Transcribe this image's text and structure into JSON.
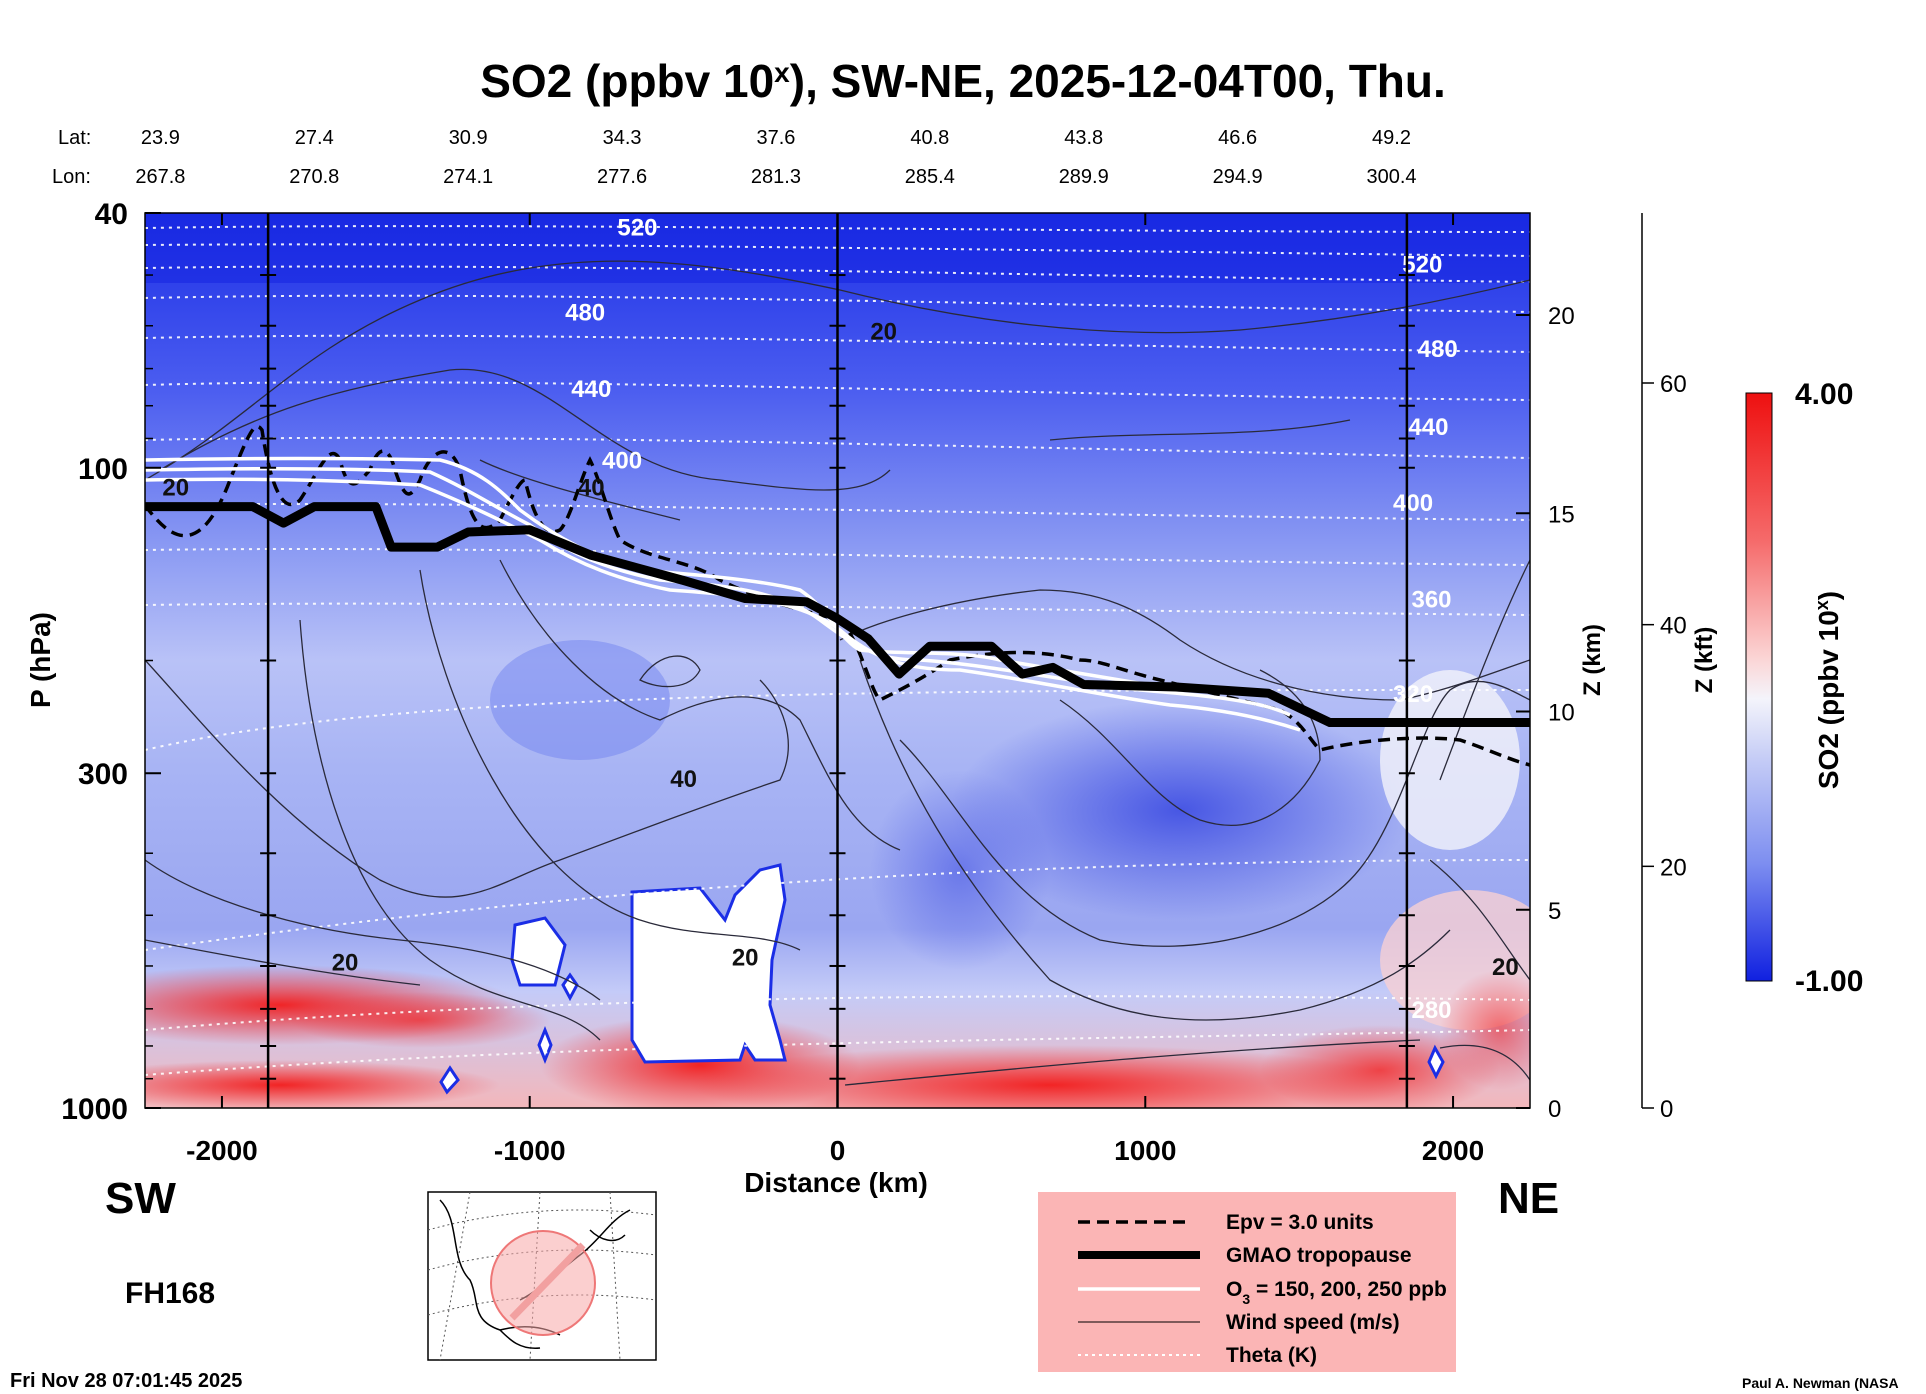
{
  "title": {
    "prefix": "SO2 (ppbv 10",
    "superscript": "x",
    "suffix": "), SW-NE, 2025-12-04T00, Thu."
  },
  "coords": {
    "lat_label": "Lat:",
    "lon_label": "Lon:",
    "lat": [
      "23.9",
      "27.4",
      "30.9",
      "34.3",
      "37.6",
      "40.8",
      "43.8",
      "46.6",
      "49.2"
    ],
    "lon": [
      "267.8",
      "270.8",
      "274.1",
      "277.6",
      "281.3",
      "285.4",
      "289.9",
      "294.9",
      "300.4"
    ],
    "x_positions_km": [
      -2200,
      -1700,
      -1200,
      -700,
      -200,
      300,
      800,
      1300,
      1800
    ]
  },
  "direction_left": "SW",
  "direction_right": "NE",
  "forecast_hour": "FH168",
  "timestamp": "Fri Nov 28 07:01:45 2025",
  "credit": "Paul A. Newman (NASA",
  "legend": {
    "items": [
      {
        "label": "Epv = 3.0 units",
        "style": "dashed"
      },
      {
        "label": "GMAO tropopause",
        "style": "thick"
      },
      {
        "label_prefix": "O",
        "label_sub": "3",
        "label_suffix": " = 150, 200, 250 ppb",
        "style": "white"
      },
      {
        "label": "Wind speed (m/s)",
        "style": "thin"
      },
      {
        "label": "Theta (K)",
        "style": "dotted"
      }
    ],
    "background": "#fbb5b5"
  },
  "colorbar": {
    "label_prefix": "SO2 (ppbv 10",
    "label_sup": "x",
    "label_suffix": ")",
    "max_label": "4.00",
    "min_label": "-1.00",
    "min": -1.0,
    "max": 4.0
  },
  "chart_data": {
    "type": "heatmap",
    "title": "SO2 (ppbv 10^x), SW-NE, 2025-12-04T00, Thu.",
    "xlabel": "Distance (km)",
    "ylabel": "P (hPa)",
    "y2label": "Z (km)",
    "y3label": "Z (kft)",
    "xlim": [
      -2250,
      2250
    ],
    "ylim_hpa": [
      1000,
      40
    ],
    "x_ticks": [
      -2000,
      -1000,
      0,
      1000,
      2000
    ],
    "x_tick_labels": [
      "-2000",
      "-1000",
      "0",
      "1000",
      "2000"
    ],
    "y_ticks_hpa": [
      40,
      100,
      300,
      1000
    ],
    "y_tick_labels": [
      "40",
      "100",
      "300",
      "1000"
    ],
    "z_km_ticks": [
      0,
      5,
      10,
      15,
      20
    ],
    "z_km_tick_labels": [
      "0",
      "5",
      "10",
      "15",
      "20"
    ],
    "z_kft_ticks": [
      0,
      20,
      40,
      60
    ],
    "z_kft_tick_labels": [
      "0",
      "20",
      "40",
      "60"
    ],
    "vertical_lines_km": [
      -1850,
      0,
      1850
    ],
    "theta_labels": [
      {
        "text": "520",
        "x": -650,
        "p": 42
      },
      {
        "text": "480",
        "x": -820,
        "p": 57
      },
      {
        "text": "440",
        "x": -800,
        "p": 75
      },
      {
        "text": "400",
        "x": -700,
        "p": 97
      },
      {
        "text": "520",
        "x": 1900,
        "p": 48
      },
      {
        "text": "480",
        "x": 1950,
        "p": 65
      },
      {
        "text": "440",
        "x": 1920,
        "p": 86
      },
      {
        "text": "400",
        "x": 1870,
        "p": 113
      },
      {
        "text": "360",
        "x": 1930,
        "p": 160
      },
      {
        "text": "320",
        "x": 1870,
        "p": 225
      },
      {
        "text": "280",
        "x": 1930,
        "p": 700
      }
    ],
    "wind_labels": [
      {
        "text": "20",
        "x": -2150,
        "p": 107
      },
      {
        "text": "40",
        "x": -800,
        "p": 107
      },
      {
        "text": "40",
        "x": -500,
        "p": 305
      },
      {
        "text": "20",
        "x": 150,
        "p": 61
      },
      {
        "text": "20",
        "x": -1600,
        "p": 590
      },
      {
        "text": "20",
        "x": -300,
        "p": 580
      },
      {
        "text": "20",
        "x": 2170,
        "p": 600
      }
    ],
    "tropopause_profile_hpa": [
      {
        "x": -2250,
        "p": 115
      },
      {
        "x": -1900,
        "p": 115
      },
      {
        "x": -1800,
        "p": 122
      },
      {
        "x": -1700,
        "p": 115
      },
      {
        "x": -1500,
        "p": 115
      },
      {
        "x": -1450,
        "p": 133
      },
      {
        "x": -1300,
        "p": 133
      },
      {
        "x": -1200,
        "p": 126
      },
      {
        "x": -1000,
        "p": 125
      },
      {
        "x": -800,
        "p": 137
      },
      {
        "x": -500,
        "p": 150
      },
      {
        "x": -300,
        "p": 160
      },
      {
        "x": -100,
        "p": 162
      },
      {
        "x": 0,
        "p": 172
      },
      {
        "x": 100,
        "p": 185
      },
      {
        "x": 200,
        "p": 210
      },
      {
        "x": 300,
        "p": 190
      },
      {
        "x": 500,
        "p": 190
      },
      {
        "x": 600,
        "p": 210
      },
      {
        "x": 700,
        "p": 205
      },
      {
        "x": 800,
        "p": 218
      },
      {
        "x": 1100,
        "p": 220
      },
      {
        "x": 1400,
        "p": 225
      },
      {
        "x": 1600,
        "p": 250
      },
      {
        "x": 2250,
        "p": 250
      }
    ]
  }
}
